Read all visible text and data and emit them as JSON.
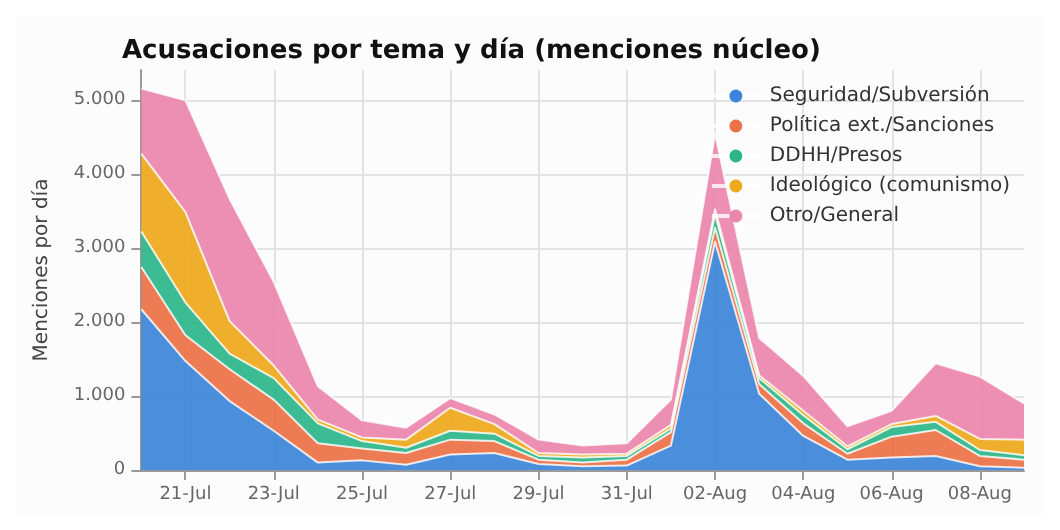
{
  "chart_data": {
    "type": "area",
    "stacked": true,
    "title": "Acusaciones por tema y día (menciones núcleo)",
    "ylabel": "Menciones por día",
    "categories": [
      null,
      "21-Jul",
      null,
      "23-Jul",
      null,
      "25-Jul",
      null,
      "27-Jul",
      null,
      "29-Jul",
      null,
      "31-Jul",
      null,
      "02-Aug",
      null,
      "04-Aug",
      null,
      "06-Aug",
      null,
      "08-Aug",
      null
    ],
    "series": [
      {
        "name": "Seguridad/Subversión",
        "color": "#3b84d9",
        "values": [
          2170,
          1470,
          930,
          530,
          100,
          130,
          70,
          210,
          230,
          80,
          50,
          60,
          330,
          3080,
          1030,
          460,
          140,
          170,
          190,
          50,
          30
        ]
      },
      {
        "name": "Política ext./Sanciones",
        "color": "#eb7147",
        "values": [
          570,
          350,
          430,
          420,
          260,
          160,
          160,
          200,
          160,
          60,
          50,
          80,
          180,
          190,
          130,
          170,
          80,
          280,
          350,
          140,
          110
        ]
      },
      {
        "name": "DDHH/Presos",
        "color": "#2db58a",
        "values": [
          480,
          440,
          210,
          290,
          270,
          100,
          70,
          120,
          100,
          50,
          70,
          50,
          50,
          180,
          80,
          110,
          60,
          130,
          110,
          80,
          60
        ]
      },
      {
        "name": "Ideológico (comunismo)",
        "color": "#eea81b",
        "values": [
          1050,
          1220,
          440,
          170,
          50,
          50,
          110,
          310,
          130,
          40,
          40,
          30,
          50,
          70,
          40,
          60,
          40,
          40,
          80,
          150,
          210
        ]
      },
      {
        "name": "Otro/General",
        "color": "#ea86ab",
        "values": [
          880,
          1510,
          1650,
          1130,
          450,
          230,
          160,
          130,
          130,
          180,
          120,
          140,
          340,
          1020,
          500,
          470,
          270,
          180,
          710,
          840,
          490
        ]
      }
    ],
    "ylim": [
      0,
      5400
    ],
    "yticks": [
      0,
      {
        "value": 1000,
        "label": "1.000"
      },
      {
        "value": 2000,
        "label": "2.000"
      },
      {
        "value": 3000,
        "label": "3.000"
      },
      {
        "value": 4000,
        "label": "4.000"
      },
      {
        "value": 5000,
        "label": "5.000"
      }
    ],
    "grid": true,
    "legend": "top right"
  }
}
